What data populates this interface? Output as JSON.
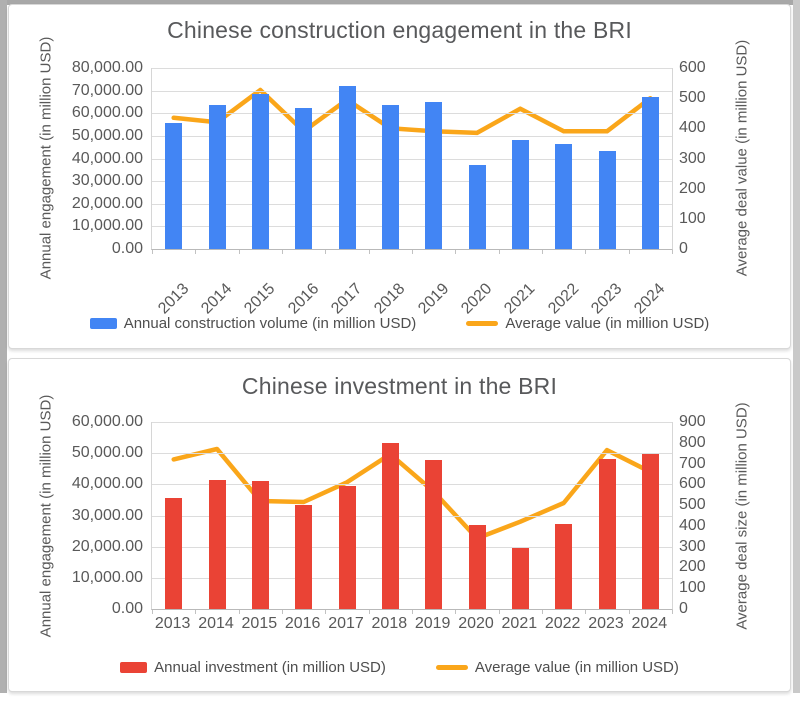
{
  "chart_data": [
    {
      "type": "bar-line-combo",
      "title": "Chinese construction engagement in the BRI",
      "categories": [
        "2013",
        "2014",
        "2015",
        "2016",
        "2017",
        "2018",
        "2019",
        "2020",
        "2021",
        "2022",
        "2023",
        "2024"
      ],
      "series": [
        {
          "name": "Annual construction volume (in million USD)",
          "type": "bar",
          "axis": "left",
          "color": "#4285F4",
          "values": [
            55500,
            63500,
            68500,
            62500,
            72000,
            63500,
            64800,
            37000,
            48200,
            46500,
            43500,
            67000
          ]
        },
        {
          "name": "Average value (in million USD)",
          "type": "line",
          "axis": "right",
          "color": "#FAA61A",
          "values": [
            435,
            420,
            527,
            390,
            495,
            400,
            390,
            385,
            465,
            390,
            390,
            500
          ]
        }
      ],
      "left_axis": {
        "title": "Annual engagement (in million USD)",
        "min": 0,
        "max": 80000,
        "step": 10000,
        "tick_labels": [
          "80,000.00",
          "70,000.00",
          "60,000.00",
          "50,000.00",
          "40,000.00",
          "30,000.00",
          "20,000.00",
          "10,000.00",
          "0.00"
        ]
      },
      "right_axis": {
        "title": "Average deal value (in million USD)",
        "min": 0,
        "max": 600,
        "step": 100,
        "tick_labels": [
          "600",
          "500",
          "400",
          "300",
          "200",
          "100",
          "0"
        ]
      },
      "x_labels_rotated": true,
      "grid": true,
      "legend_position": "bottom"
    },
    {
      "type": "bar-line-combo",
      "title": "Chinese investment in the BRI",
      "categories": [
        "2013",
        "2014",
        "2015",
        "2016",
        "2017",
        "2018",
        "2019",
        "2020",
        "2021",
        "2022",
        "2023",
        "2024"
      ],
      "series": [
        {
          "name": "Annual investment (in million USD)",
          "type": "bar",
          "axis": "left",
          "color": "#EA4335",
          "values": [
            35700,
            41500,
            41200,
            33500,
            39500,
            53300,
            47800,
            27000,
            19500,
            27300,
            48000,
            49800
          ]
        },
        {
          "name": "Average value (in million USD)",
          "type": "line",
          "axis": "right",
          "color": "#FAA61A",
          "values": [
            720,
            770,
            520,
            515,
            610,
            745,
            565,
            340,
            420,
            510,
            765,
            660
          ]
        }
      ],
      "left_axis": {
        "title": "Annual engagement (in million USD)",
        "min": 0,
        "max": 60000,
        "step": 10000,
        "tick_labels": [
          "60,000.00",
          "50,000.00",
          "40,000.00",
          "30,000.00",
          "20,000.00",
          "10,000.00",
          "0.00"
        ]
      },
      "right_axis": {
        "title": "Average deal size (in million USD)",
        "min": 0,
        "max": 900,
        "step": 100,
        "tick_labels": [
          "900",
          "800",
          "700",
          "600",
          "500",
          "400",
          "300",
          "200",
          "100",
          "0"
        ]
      },
      "x_labels_rotated": false,
      "grid": true,
      "legend_position": "bottom"
    }
  ]
}
